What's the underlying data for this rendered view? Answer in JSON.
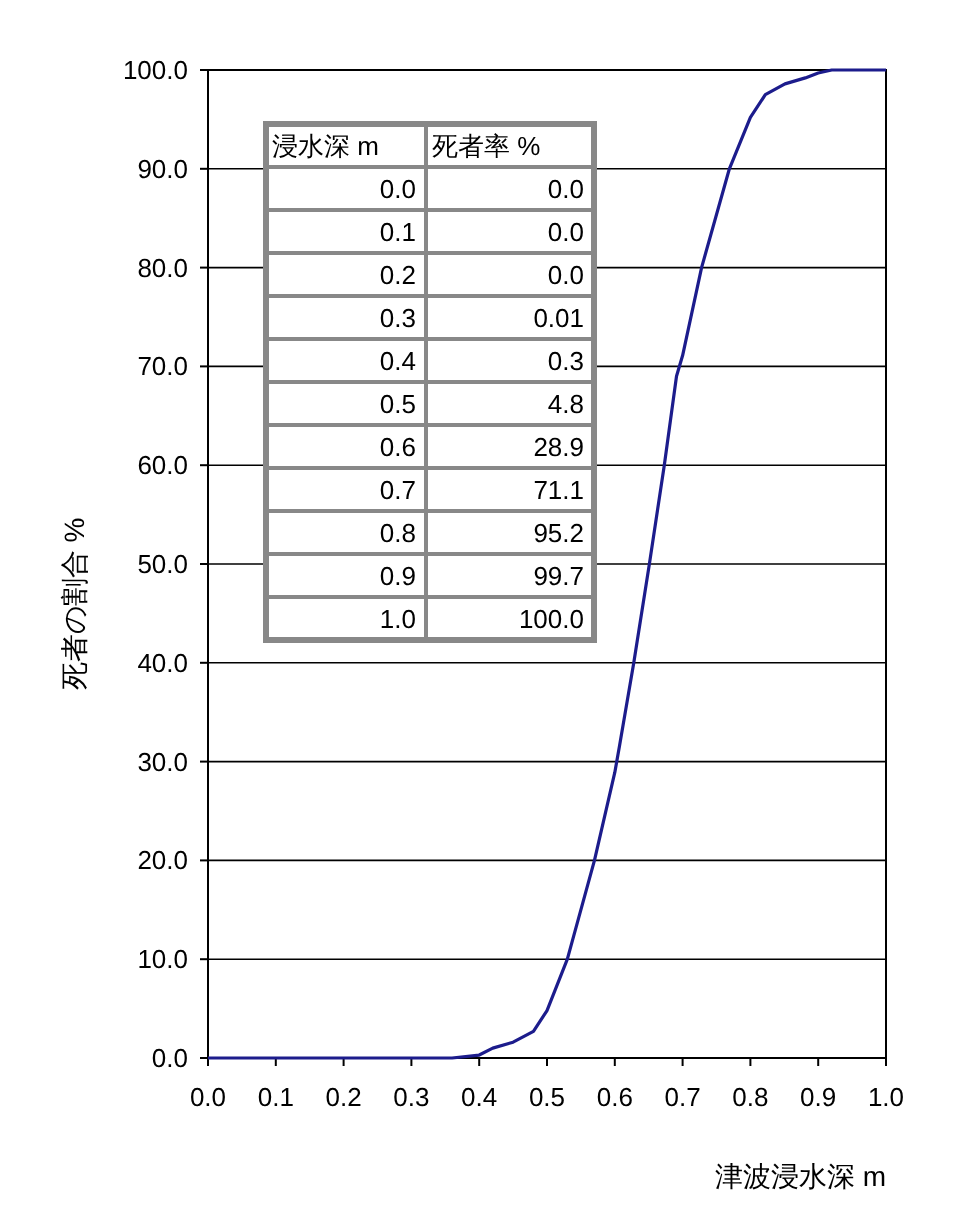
{
  "chart_data": {
    "type": "line",
    "xlabel": "津波浸水深 m",
    "ylabel": "死者の割合 %",
    "annotations": [
      "浸水深 m",
      "死者率 %",
      "0.0",
      "0.0",
      "0.1",
      "0.0",
      "0.2",
      "0.0",
      "0.3",
      "0.01",
      "0.4",
      "0.3",
      "0.5",
      "4.8",
      "0.6",
      "28.9",
      "0.7",
      "71.1",
      "0.8",
      "95.2",
      "0.9",
      "99.7",
      "1.0",
      "100.0"
    ],
    "series": [
      {
        "color": "#1c1c8c",
        "x": [
          0.0,
          0.1,
          0.2,
          0.3,
          0.36,
          0.4,
          0.42,
          0.45,
          0.48,
          0.5,
          0.53,
          0.57,
          0.6,
          0.607,
          0.628,
          0.651,
          0.673,
          0.691,
          0.7,
          0.728,
          0.769,
          0.8,
          0.822,
          0.851,
          0.881,
          0.9,
          0.92,
          1.0
        ],
        "values": [
          0.0,
          0.0,
          0.0,
          0.0,
          0,
          0.3,
          1.0,
          1.6,
          2.7,
          4.8,
          10,
          20,
          28.9,
          31.6,
          40,
          50,
          60,
          69,
          71.1,
          80,
          90,
          95.2,
          97.5,
          98.6,
          99.2,
          99.7,
          100,
          100.0
        ]
      }
    ],
    "xlim": [
      0,
      1
    ],
    "ylim": [
      0,
      100
    ],
    "xticks": [
      {
        "value": 0,
        "label": "0.0"
      },
      {
        "value": 0.1,
        "label": "0.1"
      },
      {
        "value": 0.2,
        "label": "0.2"
      },
      {
        "value": 0.3,
        "label": "0.3"
      },
      {
        "value": 0.4,
        "label": "0.4"
      },
      {
        "value": 0.5,
        "label": "0.5"
      },
      {
        "value": 0.6,
        "label": "0.6"
      },
      {
        "value": 0.7,
        "label": "0.7"
      },
      {
        "value": 0.8,
        "label": "0.8"
      },
      {
        "value": 0.9,
        "label": "0.9"
      },
      {
        "value": 1,
        "label": "1.0"
      }
    ],
    "yticks": [
      {
        "value": 0,
        "label": "0.0"
      },
      {
        "value": 10,
        "label": "10.0"
      },
      {
        "value": 20,
        "label": "20.0"
      },
      {
        "value": 30,
        "label": "30.0"
      },
      {
        "value": 40,
        "label": "40.0"
      },
      {
        "value": 50,
        "label": "50.0"
      },
      {
        "value": 60,
        "label": "60.0"
      },
      {
        "value": 70,
        "label": "70.0"
      },
      {
        "value": 80,
        "label": "80.0"
      },
      {
        "value": 90,
        "label": "90.0"
      },
      {
        "value": 100,
        "label": "100.0"
      }
    ],
    "grid": "y",
    "marker": "none",
    "line_style": "solid"
  }
}
